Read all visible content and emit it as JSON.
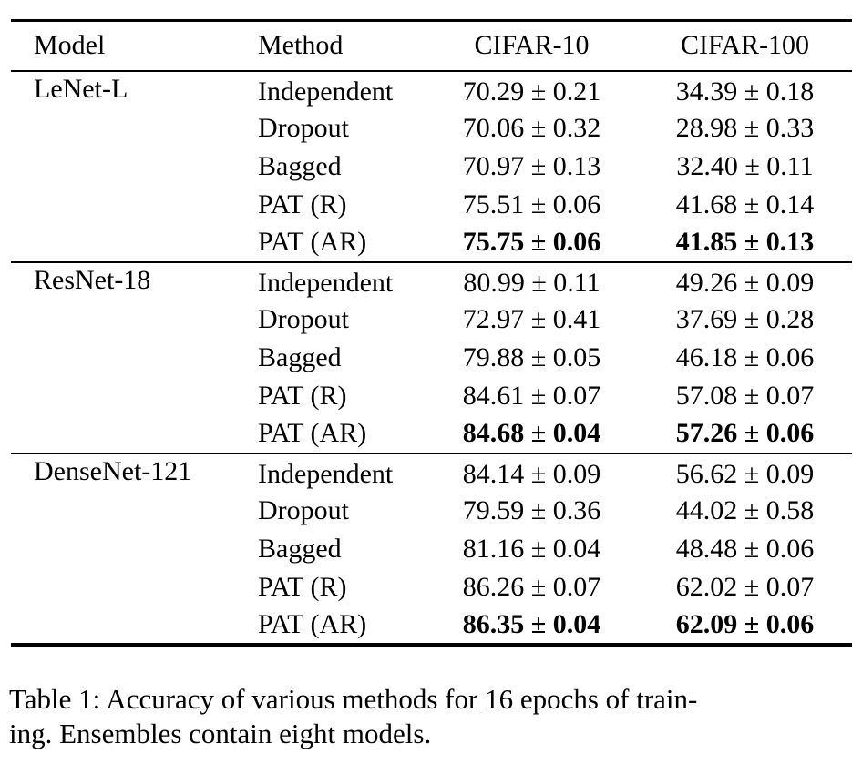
{
  "table": {
    "headers": {
      "model": "Model",
      "method": "Method",
      "cifar10": "CIFAR-10",
      "cifar100": "CIFAR-100"
    },
    "groups": [
      {
        "model": "LeNet-L",
        "rows": [
          {
            "method": "Independent",
            "cifar10": "70.29 ± 0.21",
            "cifar100": "34.39 ± 0.18"
          },
          {
            "method": "Dropout",
            "cifar10": "70.06 ± 0.32",
            "cifar100": "28.98 ± 0.33"
          },
          {
            "method": "Bagged",
            "cifar10": "70.97 ± 0.13",
            "cifar100": "32.40 ± 0.11"
          },
          {
            "method": "PAT (R)",
            "cifar10": "75.51 ± 0.06",
            "cifar100": "41.68 ± 0.14"
          },
          {
            "method": "PAT (AR)",
            "cifar10": "75.75 ± 0.06",
            "cifar100": "41.85 ± 0.13"
          }
        ]
      },
      {
        "model": "ResNet-18",
        "rows": [
          {
            "method": "Independent",
            "cifar10": "80.99 ± 0.11",
            "cifar100": "49.26 ± 0.09"
          },
          {
            "method": "Dropout",
            "cifar10": "72.97 ± 0.41",
            "cifar100": "37.69 ± 0.28"
          },
          {
            "method": "Bagged",
            "cifar10": "79.88 ± 0.05",
            "cifar100": "46.18 ± 0.06"
          },
          {
            "method": "PAT (R)",
            "cifar10": "84.61 ± 0.07",
            "cifar100": "57.08 ± 0.07"
          },
          {
            "method": "PAT (AR)",
            "cifar10": "84.68 ± 0.04",
            "cifar100": "57.26 ± 0.06"
          }
        ]
      },
      {
        "model": "DenseNet-121",
        "rows": [
          {
            "method": "Independent",
            "cifar10": "84.14 ± 0.09",
            "cifar100": "56.62 ± 0.09"
          },
          {
            "method": "Dropout",
            "cifar10": "79.59 ± 0.36",
            "cifar100": "44.02 ± 0.58"
          },
          {
            "method": "Bagged",
            "cifar10": "81.16 ± 0.04",
            "cifar100": "48.48 ± 0.06"
          },
          {
            "method": "PAT (R)",
            "cifar10": "86.26 ± 0.07",
            "cifar100": "62.02 ± 0.07"
          },
          {
            "method": "PAT (AR)",
            "cifar10": "86.35 ± 0.04",
            "cifar100": "62.09 ± 0.06"
          }
        ]
      }
    ]
  },
  "caption": {
    "line1": "Table 1: Accuracy of various methods for 16 epochs of train-",
    "line2": "ing. Ensembles contain eight models."
  }
}
